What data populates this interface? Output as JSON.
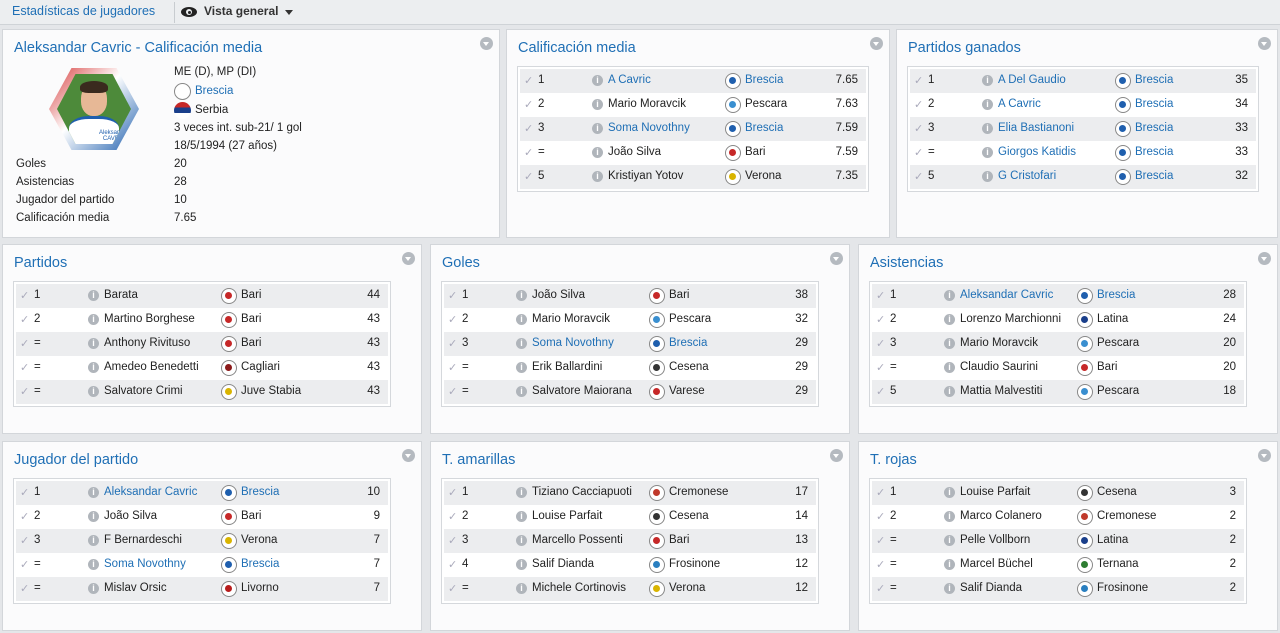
{
  "topbar": {
    "breadcrumb": "Estadísticas de jugadores",
    "view_label": "Vista general"
  },
  "colors": {
    "accent": "#1f6fb5"
  },
  "profile": {
    "title": "Aleksandar Cavric - Calificación media",
    "photo_label": "Aleksandar CAVRIC",
    "positions": "ME (D), MP (DI)",
    "club": "Brescia",
    "nation": "Serbia",
    "caps": "3 veces int. sub-21/ 1 gol",
    "dob": "18/5/1994 (27 años)",
    "stats": [
      {
        "label": "Goles",
        "value": "20"
      },
      {
        "label": "Asistencias",
        "value": "28"
      },
      {
        "label": "Jugador del partido",
        "value": "10"
      },
      {
        "label": "Calificación media",
        "value": "7.65"
      }
    ]
  },
  "panels": [
    {
      "title": "Calificación media",
      "rows": [
        {
          "rank": "1",
          "player": "A Cavric",
          "team": "Brescia",
          "value": "7.65",
          "link": true,
          "color": "#1f5fae"
        },
        {
          "rank": "2",
          "player": "Mario Moravcik",
          "team": "Pescara",
          "value": "7.63",
          "link": false,
          "color": "#3a8fd0"
        },
        {
          "rank": "3",
          "player": "Soma Novothny",
          "team": "Brescia",
          "value": "7.59",
          "link": true,
          "color": "#1f5fae"
        },
        {
          "rank": "=",
          "player": "João Silva",
          "team": "Bari",
          "value": "7.59",
          "link": false,
          "color": "#c62828"
        },
        {
          "rank": "5",
          "player": "Kristiyan Yotov",
          "team": "Verona",
          "value": "7.35",
          "link": false,
          "color": "#d9b400"
        }
      ]
    },
    {
      "title": "Partidos ganados",
      "rows": [
        {
          "rank": "1",
          "player": "A Del Gaudio",
          "team": "Brescia",
          "value": "35",
          "link": true,
          "color": "#1f5fae"
        },
        {
          "rank": "2",
          "player": "A Cavric",
          "team": "Brescia",
          "value": "34",
          "link": true,
          "color": "#1f5fae"
        },
        {
          "rank": "3",
          "player": "Elia Bastianoni",
          "team": "Brescia",
          "value": "33",
          "link": true,
          "color": "#1f5fae"
        },
        {
          "rank": "=",
          "player": "Giorgos Katidis",
          "team": "Brescia",
          "value": "33",
          "link": true,
          "color": "#1f5fae"
        },
        {
          "rank": "5",
          "player": "G Cristofari",
          "team": "Brescia",
          "value": "32",
          "link": true,
          "color": "#1f5fae"
        }
      ]
    },
    {
      "title": "Partidos",
      "rows": [
        {
          "rank": "1",
          "player": "Barata",
          "team": "Bari",
          "value": "44",
          "link": false,
          "color": "#c62828"
        },
        {
          "rank": "2",
          "player": "Martino Borghese",
          "team": "Bari",
          "value": "43",
          "link": false,
          "color": "#c62828"
        },
        {
          "rank": "=",
          "player": "Anthony Rivituso",
          "team": "Bari",
          "value": "43",
          "link": false,
          "color": "#c62828"
        },
        {
          "rank": "=",
          "player": "Amedeo Benedetti",
          "team": "Cagliari",
          "value": "43",
          "link": false,
          "color": "#8b1a1a"
        },
        {
          "rank": "=",
          "player": "Salvatore Crimi",
          "team": "Juve Stabia",
          "value": "43",
          "link": false,
          "color": "#d9b400"
        }
      ]
    },
    {
      "title": "Goles",
      "rows": [
        {
          "rank": "1",
          "player": "João Silva",
          "team": "Bari",
          "value": "38",
          "link": false,
          "color": "#c62828"
        },
        {
          "rank": "2",
          "player": "Mario Moravcik",
          "team": "Pescara",
          "value": "32",
          "link": false,
          "color": "#3a8fd0"
        },
        {
          "rank": "3",
          "player": "Soma Novothny",
          "team": "Brescia",
          "value": "29",
          "link": true,
          "color": "#1f5fae"
        },
        {
          "rank": "=",
          "player": "Erik Ballardini",
          "team": "Cesena",
          "value": "29",
          "link": false,
          "color": "#333333"
        },
        {
          "rank": "=",
          "player": "Salvatore Maiorana",
          "team": "Varese",
          "value": "29",
          "link": false,
          "color": "#c62828"
        }
      ]
    },
    {
      "title": "Asistencias",
      "rows": [
        {
          "rank": "1",
          "player": "Aleksandar Cavric",
          "team": "Brescia",
          "value": "28",
          "link": true,
          "color": "#1f5fae"
        },
        {
          "rank": "2",
          "player": "Lorenzo Marchionni",
          "team": "Latina",
          "value": "24",
          "link": false,
          "color": "#1a3f8b"
        },
        {
          "rank": "3",
          "player": "Mario Moravcik",
          "team": "Pescara",
          "value": "20",
          "link": false,
          "color": "#3a8fd0"
        },
        {
          "rank": "=",
          "player": "Claudio Saurini",
          "team": "Bari",
          "value": "20",
          "link": false,
          "color": "#c62828"
        },
        {
          "rank": "5",
          "player": "Mattia Malvestiti",
          "team": "Pescara",
          "value": "18",
          "link": false,
          "color": "#3a8fd0"
        }
      ]
    },
    {
      "title": "Jugador del partido",
      "rows": [
        {
          "rank": "1",
          "player": "Aleksandar Cavric",
          "team": "Brescia",
          "value": "10",
          "link": true,
          "color": "#1f5fae"
        },
        {
          "rank": "2",
          "player": "João Silva",
          "team": "Bari",
          "value": "9",
          "link": false,
          "color": "#c62828"
        },
        {
          "rank": "3",
          "player": "F Bernardeschi",
          "team": "Verona",
          "value": "7",
          "link": false,
          "color": "#d9b400"
        },
        {
          "rank": "=",
          "player": "Soma Novothny",
          "team": "Brescia",
          "value": "7",
          "link": true,
          "color": "#1f5fae"
        },
        {
          "rank": "=",
          "player": "Mislav Orsic",
          "team": "Livorno",
          "value": "7",
          "link": false,
          "color": "#b71c1c"
        }
      ]
    },
    {
      "title": "T. amarillas",
      "rows": [
        {
          "rank": "1",
          "player": "Tiziano Cacciapuoti",
          "team": "Cremonese",
          "value": "17",
          "link": false,
          "color": "#c0392b"
        },
        {
          "rank": "2",
          "player": "Louise Parfait",
          "team": "Cesena",
          "value": "14",
          "link": false,
          "color": "#333333"
        },
        {
          "rank": "3",
          "player": "Marcello Possenti",
          "team": "Bari",
          "value": "13",
          "link": false,
          "color": "#c62828"
        },
        {
          "rank": "4",
          "player": "Salif Dianda",
          "team": "Frosinone",
          "value": "12",
          "link": false,
          "color": "#2a7fc0"
        },
        {
          "rank": "=",
          "player": "Michele Cortinovis",
          "team": "Verona",
          "value": "12",
          "link": false,
          "color": "#d9b400"
        }
      ]
    },
    {
      "title": "T. rojas",
      "rows": [
        {
          "rank": "1",
          "player": "Louise Parfait",
          "team": "Cesena",
          "value": "3",
          "link": false,
          "color": "#333333"
        },
        {
          "rank": "2",
          "player": "Marco Colanero",
          "team": "Cremonese",
          "value": "2",
          "link": false,
          "color": "#c0392b"
        },
        {
          "rank": "=",
          "player": "Pelle Vollborn",
          "team": "Latina",
          "value": "2",
          "link": false,
          "color": "#1a3f8b"
        },
        {
          "rank": "=",
          "player": "Marcel Büchel",
          "team": "Ternana",
          "value": "2",
          "link": false,
          "color": "#2e7d32"
        },
        {
          "rank": "=",
          "player": "Salif Dianda",
          "team": "Frosinone",
          "value": "2",
          "link": false,
          "color": "#2a7fc0"
        }
      ]
    }
  ]
}
